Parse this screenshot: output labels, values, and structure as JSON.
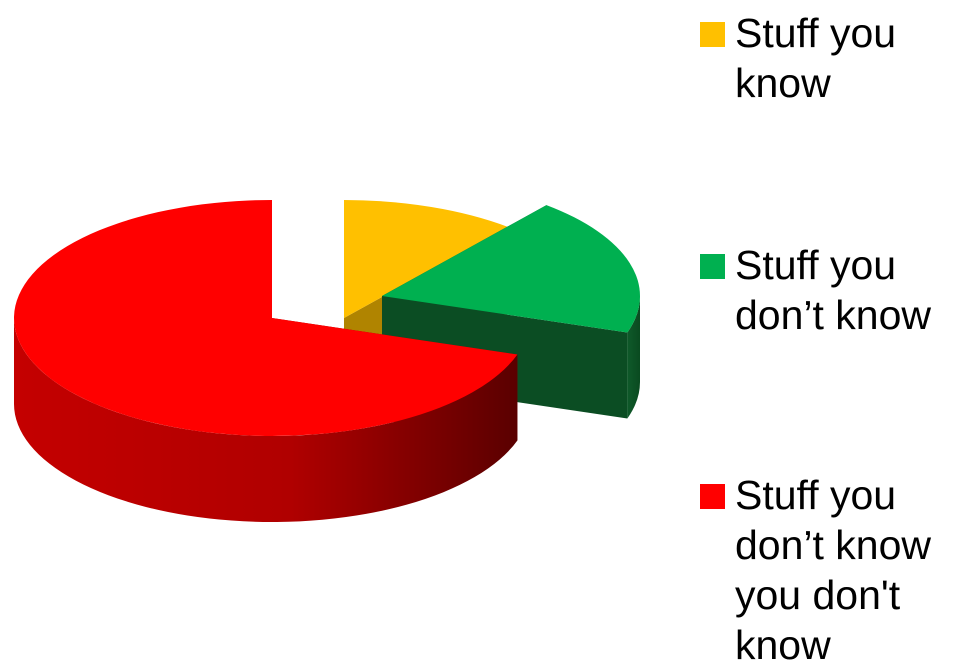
{
  "chart_data": {
    "type": "pie",
    "style": "3d-exploded",
    "legend": "right",
    "slices": [
      {
        "name": "Stuff you know",
        "value": 11,
        "color": "#FFC000"
      },
      {
        "name": "Stuff you don’t know",
        "value": 19,
        "color": "#00B050"
      },
      {
        "name": "Stuff you don’t know you don't know",
        "value": 70,
        "color": "#FF0000"
      }
    ]
  }
}
